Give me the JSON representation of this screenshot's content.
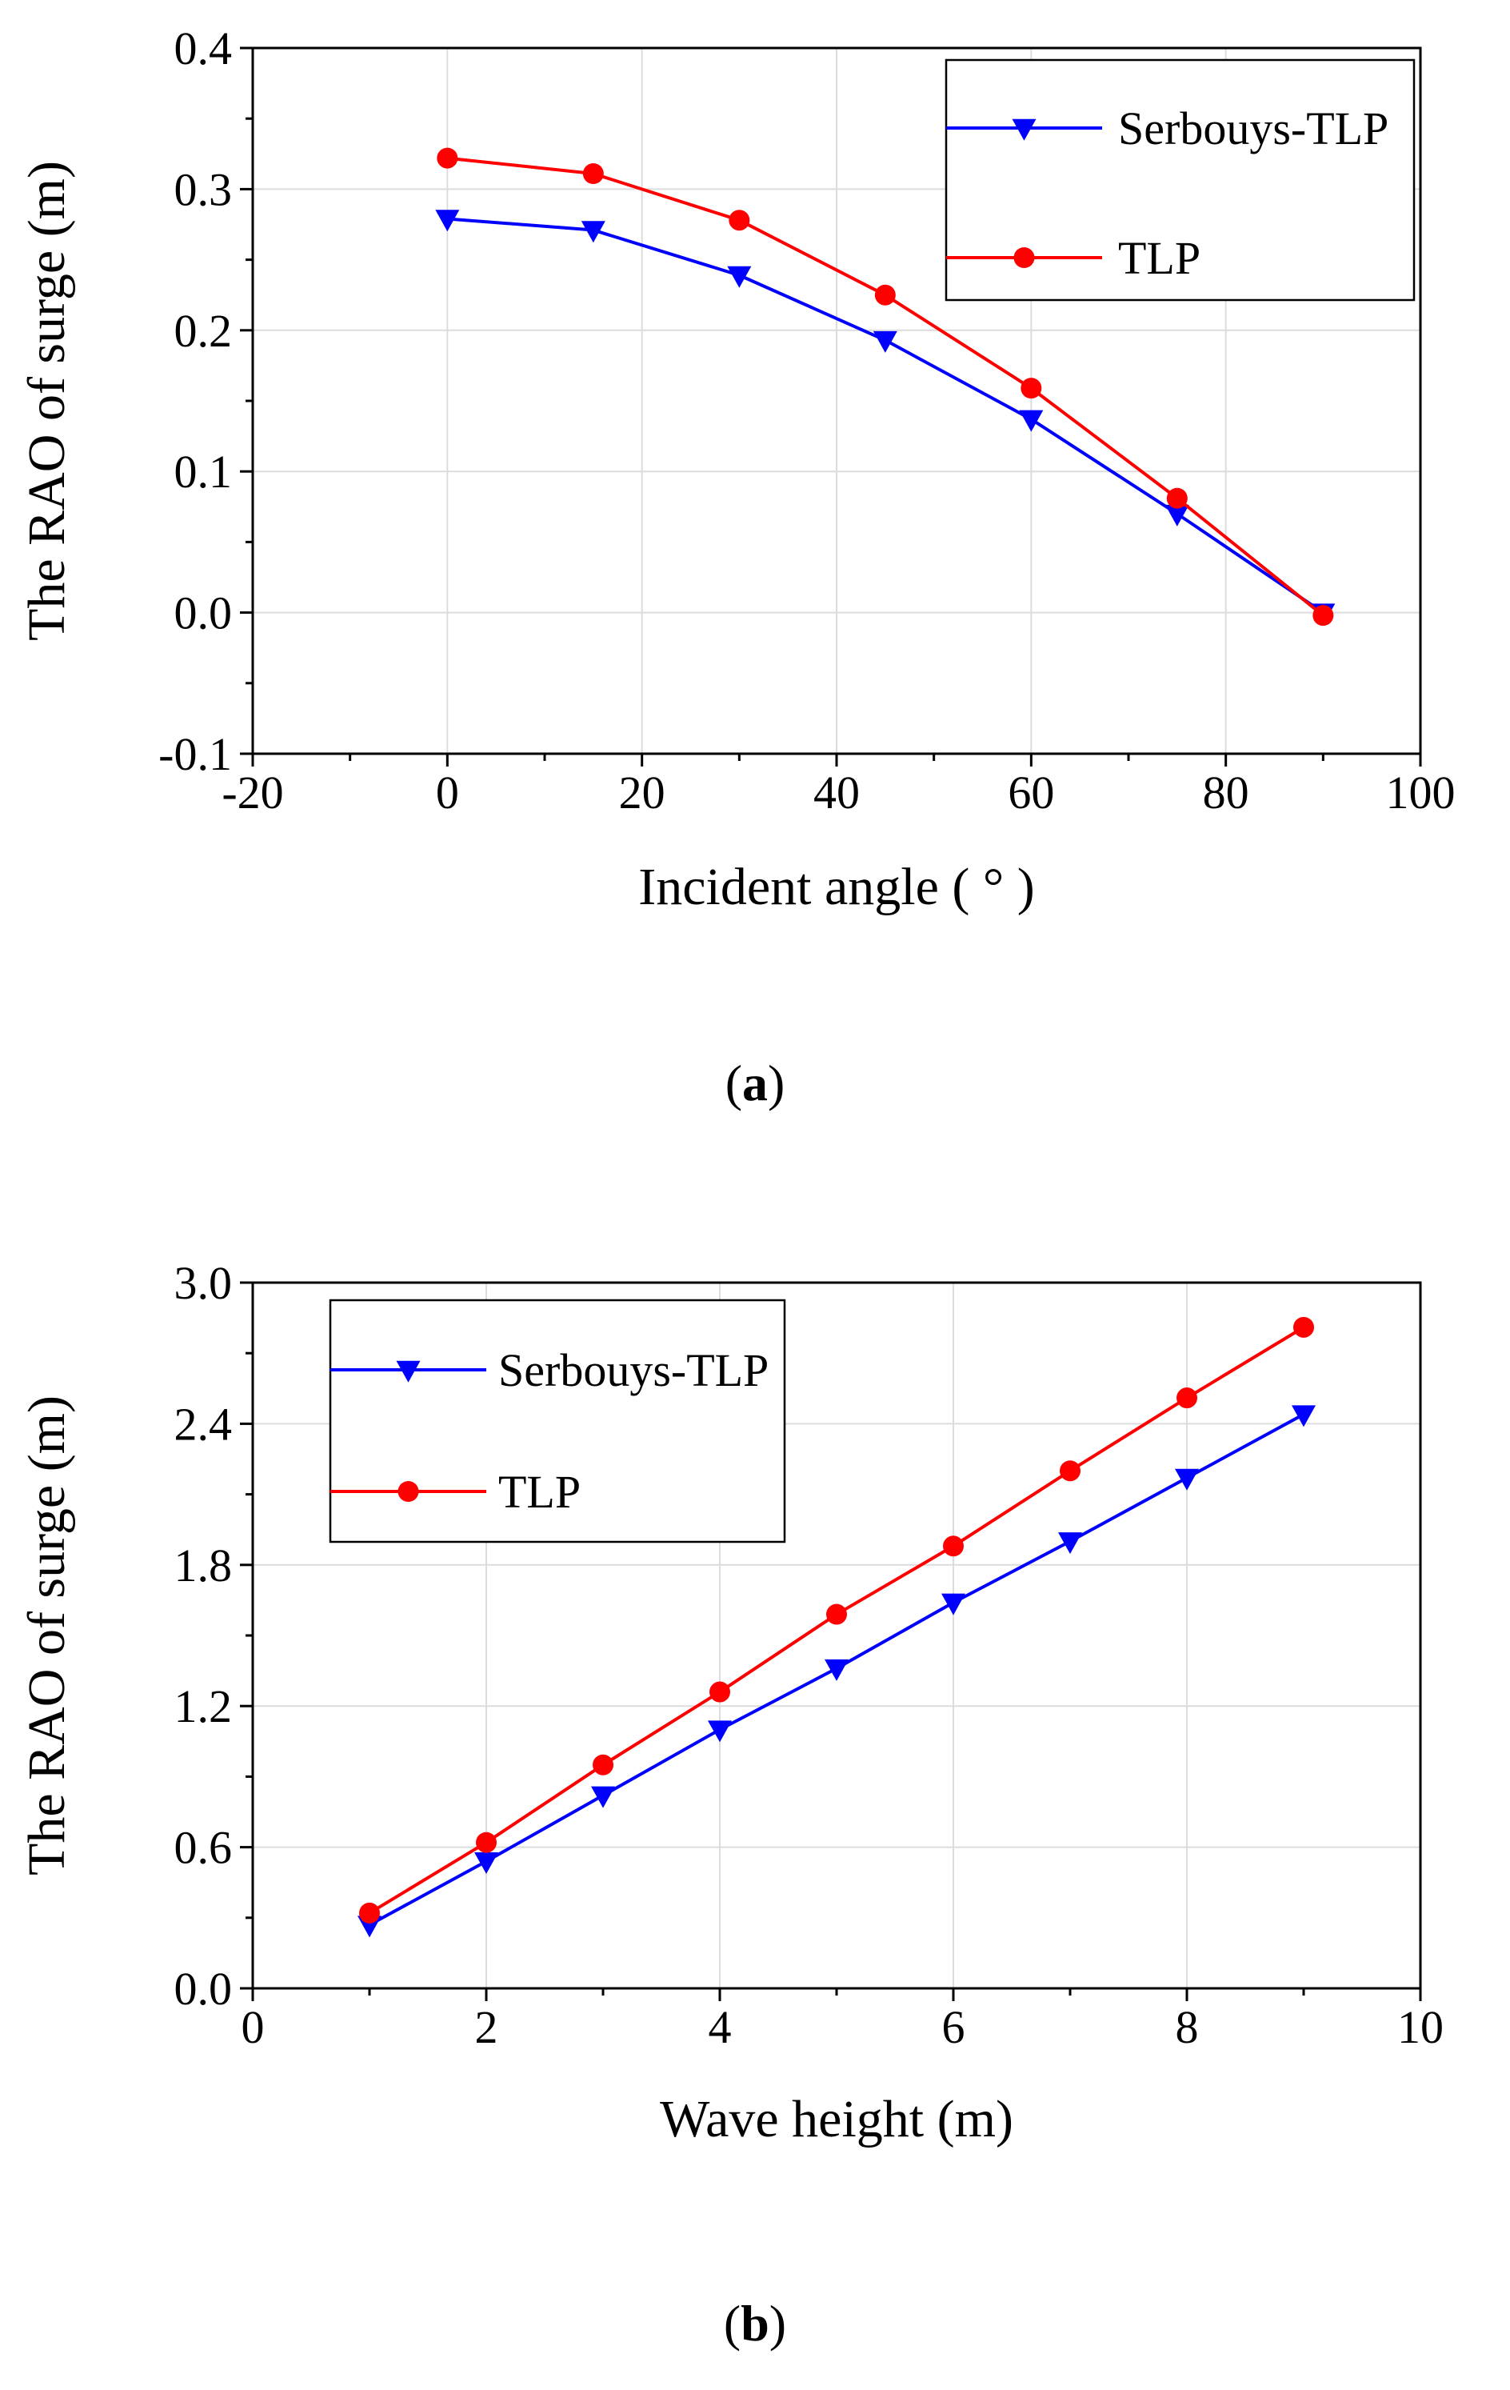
{
  "chart_data": [
    {
      "type": "line",
      "panel_label": "a",
      "title": "",
      "xlabel": "Incident angle ( ° )",
      "ylabel": "The RAO of surge (m)",
      "xlim": [
        -20,
        100
      ],
      "ylim": [
        -0.1,
        0.4
      ],
      "xticks": [
        -20,
        0,
        20,
        40,
        60,
        80,
        100
      ],
      "xtick_labels": [
        "-20",
        "0",
        "20",
        "40",
        "60",
        "80",
        "100"
      ],
      "yticks": [
        -0.1,
        0.0,
        0.1,
        0.2,
        0.3,
        0.4
      ],
      "ytick_labels": [
        "-0.1",
        "0.0",
        "0.1",
        "0.2",
        "0.3",
        "0.4"
      ],
      "grid": true,
      "legend_position": "top-right",
      "x": [
        0,
        15,
        30,
        45,
        60,
        75,
        90
      ],
      "series": [
        {
          "name": "Serbouys-TLP",
          "color": "#0000ff",
          "marker": "triangle-down",
          "values": [
            0.279,
            0.271,
            0.239,
            0.193,
            0.137,
            0.07,
            0.0
          ]
        },
        {
          "name": "TLP",
          "color": "#ff0000",
          "marker": "circle",
          "values": [
            0.322,
            0.311,
            0.278,
            0.225,
            0.159,
            0.081,
            -0.002
          ]
        }
      ]
    },
    {
      "type": "line",
      "panel_label": "b",
      "title": "",
      "xlabel": "Wave height (m)",
      "ylabel": "The RAO of surge (m)",
      "xlim": [
        0,
        10
      ],
      "ylim": [
        0.0,
        3.0
      ],
      "xticks": [
        0,
        2,
        4,
        6,
        8,
        10
      ],
      "xtick_labels": [
        "0",
        "2",
        "4",
        "6",
        "8",
        "10"
      ],
      "yticks": [
        0.0,
        0.6,
        1.2,
        1.8,
        2.4,
        3.0
      ],
      "ytick_labels": [
        "0.0",
        "0.6",
        "1.2",
        "1.8",
        "2.4",
        "3.0"
      ],
      "grid": true,
      "legend_position": "top-left",
      "x": [
        1,
        2,
        3,
        4,
        5,
        6,
        7,
        8,
        9
      ],
      "series": [
        {
          "name": "Serbouys-TLP",
          "color": "#0000ff",
          "marker": "triangle-down",
          "values": [
            0.27,
            0.54,
            0.82,
            1.1,
            1.36,
            1.64,
            1.9,
            2.17,
            2.44
          ]
        },
        {
          "name": "TLP",
          "color": "#ff0000",
          "marker": "circle",
          "values": [
            0.32,
            0.62,
            0.95,
            1.26,
            1.59,
            1.88,
            2.2,
            2.51,
            2.81
          ]
        }
      ]
    }
  ]
}
